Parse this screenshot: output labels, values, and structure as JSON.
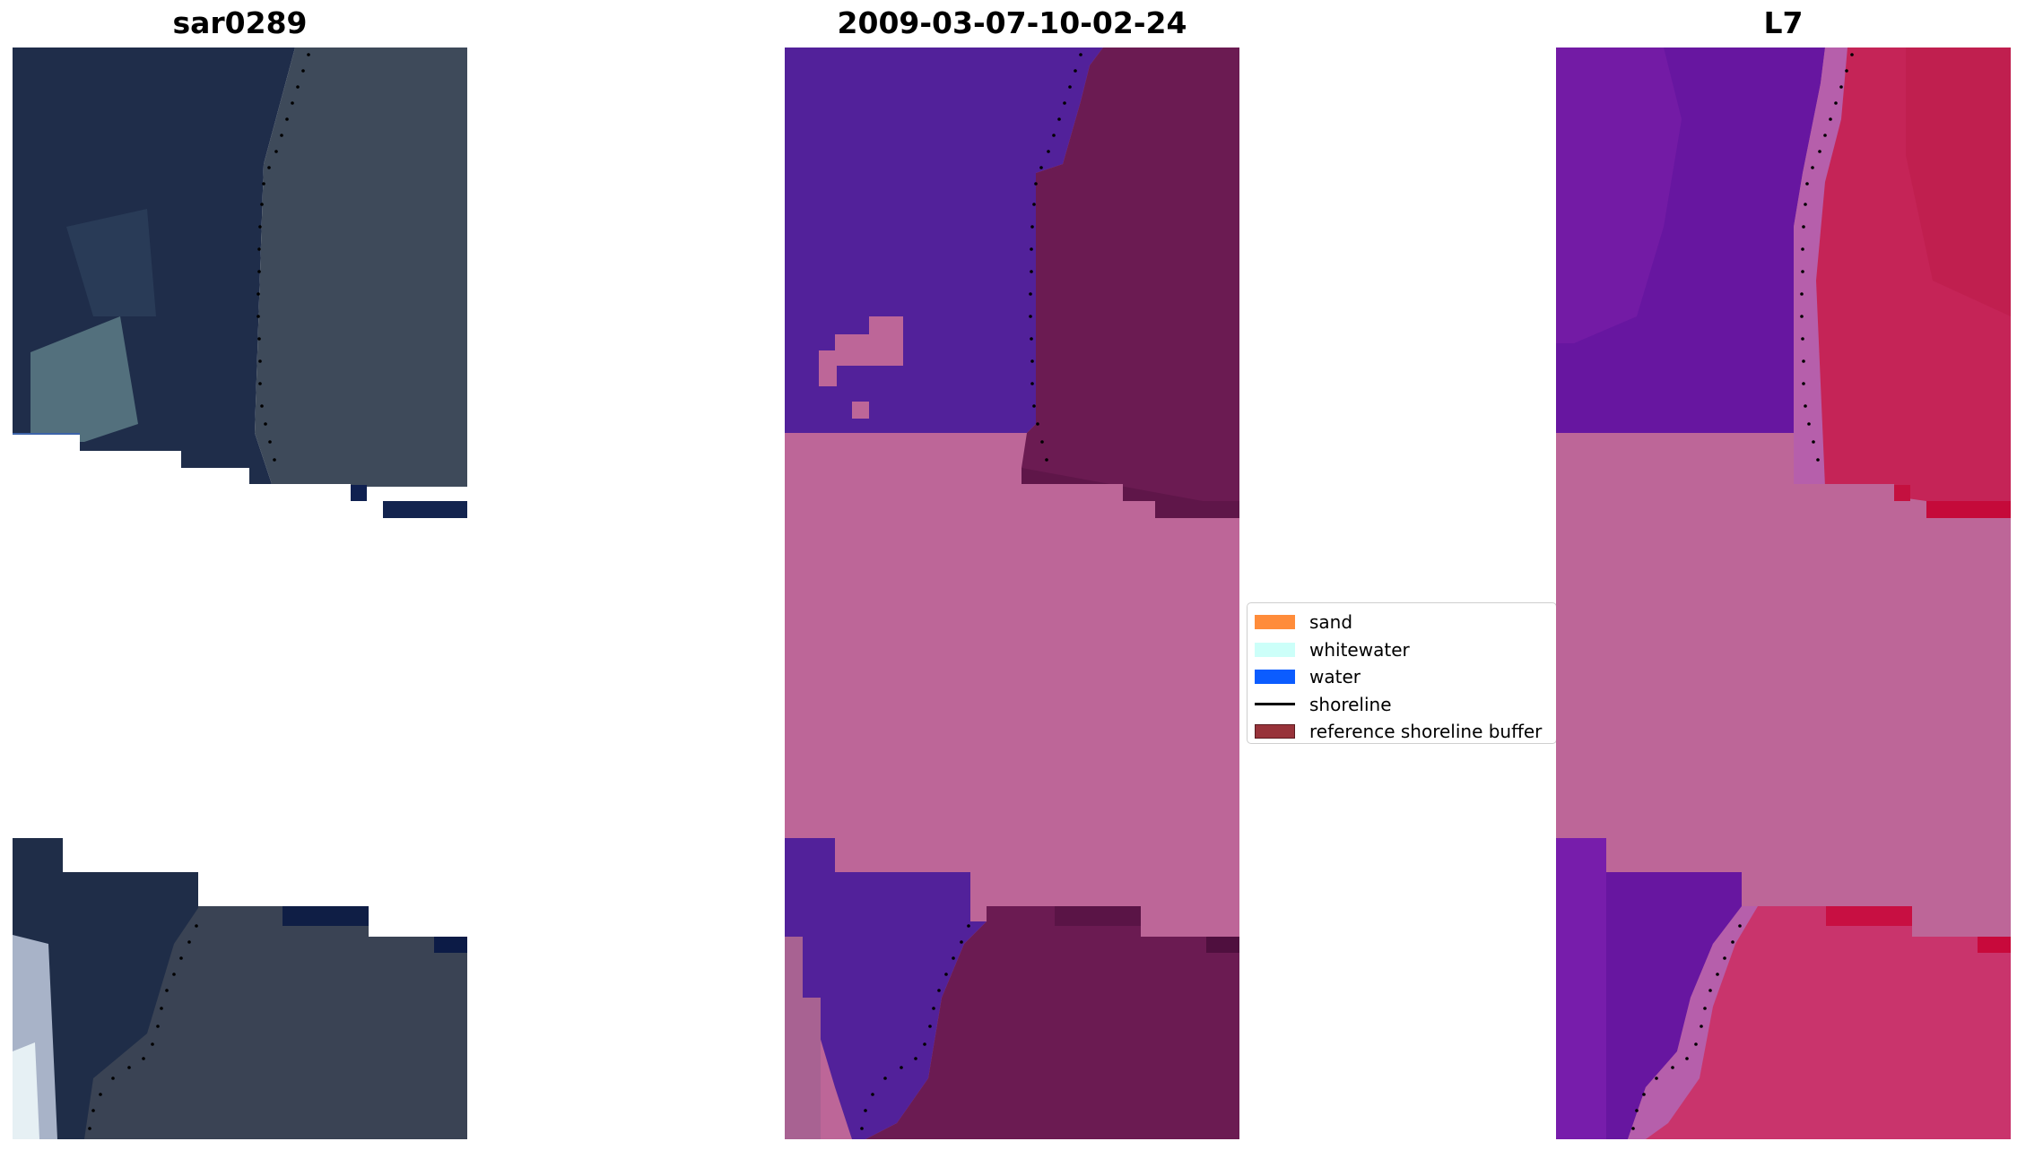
{
  "titles": {
    "left": "sar0289",
    "center": "2009-03-07-10-02-24",
    "right": "L7"
  },
  "legend": [
    {
      "label": "sand",
      "kind": "patch",
      "color": "#ff8c3a",
      "edge": "#ff8c3a"
    },
    {
      "label": "whitewater",
      "kind": "patch",
      "color": "#ccfff9",
      "edge": "#ccfff9"
    },
    {
      "label": "water",
      "kind": "patch",
      "color": "#0b5cff",
      "edge": "#0b5cff"
    },
    {
      "label": "shoreline",
      "kind": "line",
      "color": "#000000"
    },
    {
      "label": "reference shoreline buffer",
      "kind": "patch",
      "color": "#98333a",
      "edge": "#5a1a1f"
    }
  ],
  "colors": {
    "no_data_mask": "#bd6698",
    "rgb_land": "#3f4b5c",
    "rgb_water": "#1e2c48",
    "class_water": "#52219a",
    "class_buffer": "#6b1b52",
    "index_land": "#c52457",
    "index_water": "#6716a0"
  }
}
